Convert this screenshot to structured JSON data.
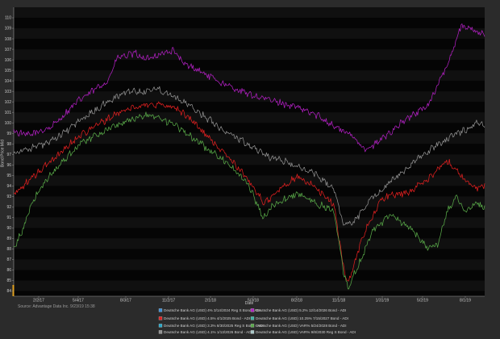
{
  "chart_data": {
    "type": "line",
    "title": "",
    "xlabel": "Date",
    "ylabel": "Bond Price Mid",
    "ylim": [
      83.5,
      111
    ],
    "y_ticks": [
      84,
      85,
      86,
      87,
      88,
      89,
      90,
      91,
      92,
      93,
      94,
      95,
      96,
      97,
      98,
      99,
      100,
      101,
      102,
      103,
      104,
      105,
      106,
      107,
      108,
      109,
      110
    ],
    "x_tick_labels": [
      "2/2/17",
      "5/4/17",
      "8/3/17",
      "11/2/17",
      "2/1/18",
      "5/3/18",
      "8/2/18",
      "11/1/18",
      "1/31/19",
      "5/2/19",
      "8/1/19"
    ],
    "grid": false,
    "legend_position": "bottom",
    "source": "Source: Advantage Data Inc. 9/23/19 15:38",
    "legend": [
      {
        "label": "Deutsche Bank AG (USD) 4% 3/14/2024 Reg S Bond - ADI",
        "color": "#3a8fd8"
      },
      {
        "label": "Deutsche Bank AG (USD) 5.2% 12/14/2026 Bond - ADI",
        "color": "#b020c0"
      },
      {
        "label": "Deutsche Bank AG (USD) 4.5% 4/1/2025 Bond - ADI",
        "color": "#e02020"
      },
      {
        "label": "Deutsche Bank AG (USD) 10.25% 7/15/2027 Bond - ADI",
        "color": "#3fb0a0"
      },
      {
        "label": "Deutsche Bank AG (USD) 3.3% 8/30/2025 Reg S Bond - ADI",
        "color": "#27a8c8"
      },
      {
        "label": "Deutsche Bank AG (USD) VAR% 5/24/2028 Bond - ADI",
        "color": "#58a848"
      },
      {
        "label": "Deutsche Bank AG (USD) 4.1% 1/13/2026 Bond - ADI",
        "color": "#909090"
      },
      {
        "label": "Deutsche Bank AG (USD) VAR% 9/8/2030 Reg S Bond - ADI",
        "color": "#a8c8c8"
      }
    ],
    "series": [
      {
        "color": "#b020c0",
        "x": [
          0,
          3,
          8,
          14,
          20,
          22,
          26,
          28,
          30,
          34,
          36,
          38,
          40,
          45,
          50,
          55,
          60,
          65,
          68,
          72,
          75,
          78,
          82,
          88,
          92,
          95,
          100
        ],
        "y": [
          99.2,
          98.8,
          99.6,
          102.2,
          104.0,
          106.2,
          106.6,
          106.0,
          106.4,
          106.9,
          105.6,
          105.3,
          104.8,
          103.6,
          102.7,
          102.1,
          101.5,
          100.6,
          99.7,
          98.7,
          97.4,
          98.4,
          99.9,
          101.7,
          105.4,
          109.3,
          108.4
        ]
      },
      {
        "color": "#909090",
        "x": [
          0,
          3,
          8,
          14,
          20,
          24,
          28,
          30,
          34,
          36,
          38,
          40,
          45,
          50,
          55,
          58,
          60,
          64,
          68,
          70,
          72,
          74,
          76,
          78,
          80,
          84,
          88,
          92,
          96,
          98,
          100
        ],
        "y": [
          97.2,
          97.5,
          98.2,
          100.2,
          102.0,
          103.0,
          103.0,
          103.3,
          102.6,
          102.0,
          101.4,
          100.8,
          99.2,
          97.9,
          96.6,
          96.3,
          95.8,
          95.2,
          93.7,
          90.4,
          90.4,
          91.7,
          92.9,
          93.5,
          94.4,
          95.9,
          97.3,
          98.5,
          99.4,
          99.9,
          99.9
        ]
      },
      {
        "color": "#e02020",
        "x": [
          0,
          3,
          8,
          14,
          20,
          24,
          28,
          30,
          34,
          36,
          38,
          40,
          45,
          50,
          53,
          55,
          58,
          60,
          64,
          68,
          70,
          71,
          72,
          74,
          76,
          78,
          80,
          84,
          88,
          92,
          94,
          96,
          98,
          100
        ],
        "y": [
          93.2,
          94.4,
          96.4,
          98.8,
          100.4,
          101.3,
          101.7,
          101.8,
          101.5,
          100.9,
          100.2,
          99.2,
          97.0,
          94.5,
          92.4,
          93.0,
          94.2,
          94.9,
          93.9,
          92.2,
          86.3,
          84.8,
          86.1,
          89.1,
          90.9,
          92.7,
          93.1,
          93.4,
          94.7,
          96.4,
          95.6,
          94.4,
          93.7,
          94.1
        ]
      },
      {
        "color": "#58a848",
        "x": [
          0,
          2,
          4,
          8,
          14,
          20,
          24,
          28,
          30,
          34,
          36,
          38,
          40,
          45,
          50,
          53,
          55,
          58,
          60,
          64,
          68,
          70,
          71,
          72,
          74,
          76,
          78,
          80,
          84,
          88,
          90,
          92,
          94,
          96,
          98,
          100
        ],
        "y": [
          88.0,
          89.9,
          92.6,
          95.2,
          98.0,
          99.4,
          100.2,
          100.7,
          100.7,
          99.8,
          99.2,
          98.6,
          97.9,
          96.4,
          94.0,
          90.9,
          92.1,
          92.8,
          93.3,
          92.4,
          91.6,
          85.9,
          84.2,
          85.3,
          87.2,
          89.7,
          90.5,
          91.2,
          90.0,
          88.1,
          88.4,
          91.5,
          93.0,
          91.5,
          92.4,
          91.9
        ]
      }
    ]
  }
}
